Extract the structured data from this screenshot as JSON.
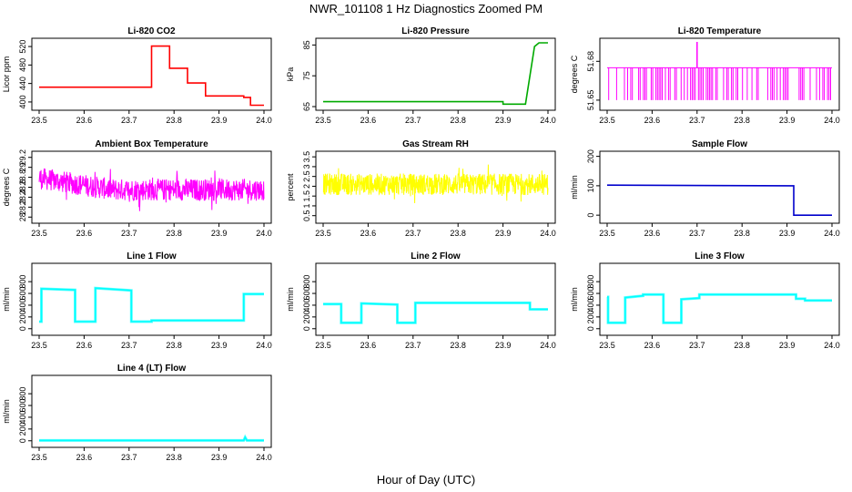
{
  "figure": {
    "title": "NWR_101108 1 Hz Diagnostics Zoomed PM",
    "xlabel": "Hour of Day (UTC)"
  },
  "chart_data": [
    {
      "type": "line",
      "title": "Li-820 CO2",
      "ylabel": "Licor ppm",
      "color": "#ff0000",
      "xlim": [
        23.5,
        24.0
      ],
      "ylim": [
        390,
        530
      ],
      "yticks": [
        400,
        440,
        480,
        520
      ],
      "x": [
        23.5,
        23.75,
        23.75,
        23.79,
        23.79,
        23.83,
        23.83,
        23.87,
        23.87,
        23.955,
        23.955,
        23.97,
        23.97,
        24.0
      ],
      "y": [
        432,
        432,
        521,
        521,
        473,
        473,
        441,
        441,
        413,
        413,
        410,
        410,
        393,
        393
      ]
    },
    {
      "type": "line",
      "title": "Li-820 Pressure",
      "ylabel": "kPa",
      "color": "#00aa00",
      "xlim": [
        23.5,
        24.0
      ],
      "ylim": [
        65,
        86
      ],
      "yticks": [
        65,
        75,
        85
      ],
      "x": [
        23.5,
        23.9,
        23.9,
        23.95,
        23.97,
        23.98,
        24.0
      ],
      "y": [
        66.6,
        66.6,
        65.8,
        65.8,
        84.5,
        85.7,
        85.7
      ]
    },
    {
      "type": "line",
      "title": "Li-820 Temperature",
      "ylabel": "degrees C",
      "color": "#ff00ff",
      "xlim": [
        23.5,
        24.0
      ],
      "ylim": [
        51.645,
        51.695
      ],
      "yticks": [
        51.65,
        51.68
      ],
      "base": 51.65,
      "level": 51.675,
      "spike_x": 23.7,
      "spike_y": 51.695
    },
    {
      "type": "line",
      "title": "Ambient Box Temperature",
      "ylabel": "degrees C",
      "color": "#ff00ff",
      "xlim": [
        23.5,
        24.0
      ],
      "ylim": [
        27.95,
        29.25
      ],
      "yticks": [
        28.0,
        28.2,
        28.4,
        28.6,
        28.8,
        29.0,
        29.2
      ],
      "mean_start": 28.78,
      "mean_end": 28.55,
      "noise": 0.22
    },
    {
      "type": "line",
      "title": "Gas Stream RH",
      "ylabel": "percent",
      "color": "#ffff00",
      "xlim": [
        23.5,
        24.0
      ],
      "ylim": [
        0.3,
        3.6
      ],
      "yticks": [
        0.5,
        1.0,
        1.5,
        2.0,
        2.5,
        3.0,
        3.5
      ],
      "mean": 2.1,
      "noise": 0.55
    },
    {
      "type": "line",
      "title": "Sample Flow",
      "ylabel": "ml/min",
      "color": "#0000cc",
      "xlim": [
        23.5,
        24.0
      ],
      "ylim": [
        -15,
        205
      ],
      "yticks": [
        0,
        100,
        200
      ],
      "x": [
        23.5,
        23.915,
        23.915,
        24.0
      ],
      "y": [
        102,
        100,
        0,
        0
      ]
    },
    {
      "type": "line",
      "title": "Line 1 Flow",
      "ylabel": "ml/min",
      "color": "#00ffff",
      "xlim": [
        23.5,
        24.0
      ],
      "ylim": [
        -50,
        1050
      ],
      "yticks": [
        0,
        200,
        400,
        600,
        800
      ],
      "x": [
        23.5,
        23.505,
        23.505,
        23.58,
        23.58,
        23.625,
        23.625,
        23.705,
        23.705,
        23.75,
        23.75,
        23.955,
        23.955,
        24.0
      ],
      "y": [
        120,
        120,
        680,
        660,
        120,
        120,
        690,
        650,
        120,
        120,
        140,
        140,
        590,
        590
      ]
    },
    {
      "type": "line",
      "title": "Line 2 Flow",
      "ylabel": "ml/min",
      "color": "#00ffff",
      "xlim": [
        23.5,
        24.0
      ],
      "ylim": [
        -50,
        1050
      ],
      "yticks": [
        0,
        200,
        400,
        600,
        800
      ],
      "x": [
        23.5,
        23.54,
        23.54,
        23.585,
        23.585,
        23.665,
        23.665,
        23.705,
        23.705,
        23.96,
        23.96,
        24.0
      ],
      "y": [
        420,
        420,
        100,
        100,
        430,
        410,
        100,
        100,
        440,
        440,
        330,
        330
      ]
    },
    {
      "type": "line",
      "title": "Line 3 Flow",
      "ylabel": "ml/min",
      "color": "#00ffff",
      "xlim": [
        23.5,
        24.0
      ],
      "ylim": [
        -50,
        1050
      ],
      "yticks": [
        0,
        200,
        400,
        600,
        800
      ],
      "x": [
        23.5,
        23.502,
        23.502,
        23.54,
        23.54,
        23.58,
        23.58,
        23.625,
        23.625,
        23.665,
        23.665,
        23.705,
        23.705,
        23.92,
        23.92,
        23.94,
        23.94,
        24.0
      ],
      "y": [
        540,
        540,
        100,
        100,
        530,
        560,
        580,
        580,
        100,
        100,
        500,
        520,
        580,
        580,
        510,
        510,
        480,
        480
      ]
    },
    {
      "type": "line",
      "title": "Line 4 (LT) Flow",
      "ylabel": "ml/min",
      "color": "#00ffff",
      "xlim": [
        23.5,
        24.0
      ],
      "ylim": [
        -50,
        1050
      ],
      "yticks": [
        0,
        200,
        400,
        600,
        800
      ],
      "x": [
        23.5,
        23.955,
        23.958,
        23.962,
        24.0
      ],
      "y": [
        5,
        5,
        60,
        5,
        5
      ]
    }
  ],
  "xticks": [
    "23.5",
    "23.6",
    "23.7",
    "23.8",
    "23.9",
    "24.0"
  ]
}
